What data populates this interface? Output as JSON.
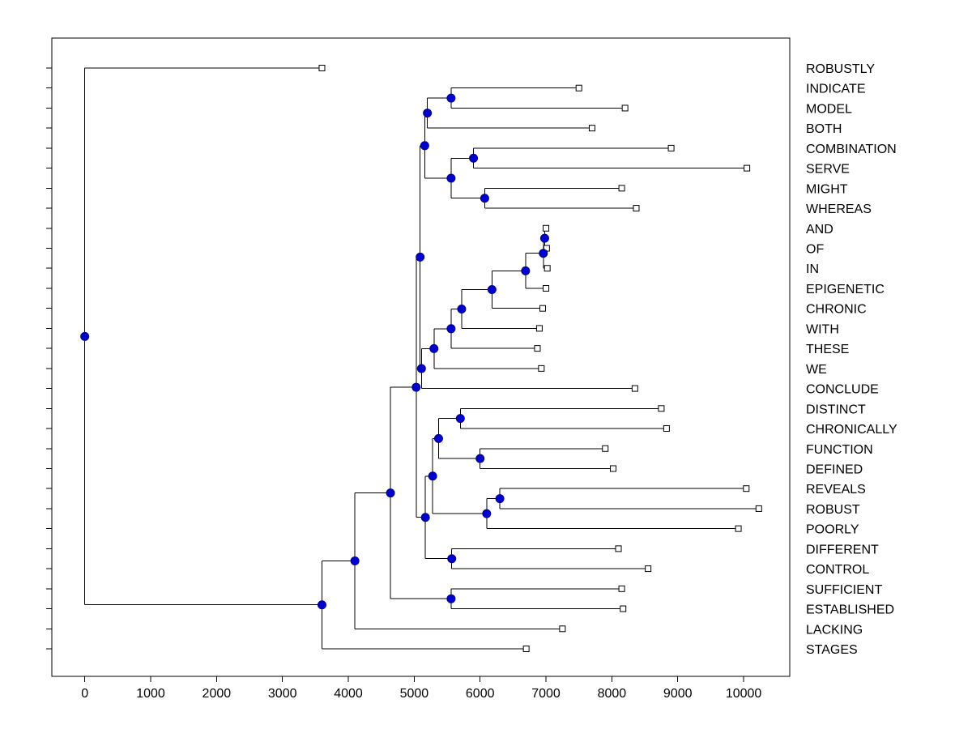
{
  "window": {
    "background": "#ffffff"
  },
  "chart_data": {
    "type": "dendrogram",
    "orientation": "root-left-leaves-right",
    "title": "",
    "xlabel": "",
    "ylabel": "",
    "grid": false,
    "xlim": [
      -500,
      10700
    ],
    "x_ticks": [
      0,
      1000,
      2000,
      3000,
      4000,
      5000,
      6000,
      7000,
      8000,
      9000,
      10000
    ],
    "colors": {
      "line": "#000000",
      "axis": "#000000",
      "text": "#000000",
      "node_fill": "#0000cd",
      "node_stroke": "#00008b",
      "leaf_fill": "#ffffff",
      "leaf_stroke": "#000000",
      "plot_background": "#ffffff"
    },
    "leaves": [
      {
        "label": "ROBUSTLY",
        "x": 3600
      },
      {
        "label": "INDICATE",
        "x": 7500
      },
      {
        "label": "MODEL",
        "x": 8200
      },
      {
        "label": "BOTH",
        "x": 7700
      },
      {
        "label": "COMBINATION",
        "x": 8900
      },
      {
        "label": "SERVE",
        "x": 10050
      },
      {
        "label": "MIGHT",
        "x": 8150
      },
      {
        "label": "WHEREAS",
        "x": 8370
      },
      {
        "label": "AND",
        "x": 7000
      },
      {
        "label": "OF",
        "x": 7010
      },
      {
        "label": "IN",
        "x": 7020
      },
      {
        "label": "EPIGENETIC",
        "x": 7000
      },
      {
        "label": "CHRONIC",
        "x": 6950
      },
      {
        "label": "WITH",
        "x": 6900
      },
      {
        "label": "THESE",
        "x": 6870
      },
      {
        "label": "WE",
        "x": 6930
      },
      {
        "label": "CONCLUDE",
        "x": 8350
      },
      {
        "label": "DISTINCT",
        "x": 8750
      },
      {
        "label": "CHRONICALLY",
        "x": 8830
      },
      {
        "label": "FUNCTION",
        "x": 7900
      },
      {
        "label": "DEFINED",
        "x": 8020
      },
      {
        "label": "REVEALS",
        "x": 10040
      },
      {
        "label": "ROBUST",
        "x": 10230
      },
      {
        "label": "POORLY",
        "x": 9920
      },
      {
        "label": "DIFFERENT",
        "x": 8100
      },
      {
        "label": "CONTROL",
        "x": 8550
      },
      {
        "label": "SUFFICIENT",
        "x": 8150
      },
      {
        "label": "ESTABLISHED",
        "x": 8170
      },
      {
        "label": "LACKING",
        "x": 7250
      },
      {
        "label": "STAGES",
        "x": 6700
      }
    ],
    "tree": {
      "x": 0,
      "c": [
        0,
        {
          "x": 3600,
          "c": [
            {
              "x": 4100,
              "c": [
                {
                  "x": 4640,
                  "c": [
                    {
                      "x": 5030,
                      "c": [
                        {
                          "x": 5090,
                          "c": [
                            {
                              "x": 5160,
                              "c": [
                                {
                                  "x": 5200,
                                  "c": [
                                    {
                                      "x": 5560,
                                      "c": [
                                        1,
                                        2
                                      ]
                                    },
                                    3
                                  ]
                                },
                                {
                                  "x": 5560,
                                  "c": [
                                    {
                                      "x": 5900,
                                      "c": [
                                        4,
                                        5
                                      ]
                                    },
                                    {
                                      "x": 6070,
                                      "c": [
                                        6,
                                        7
                                      ]
                                    }
                                  ]
                                }
                              ]
                            },
                            {
                              "x": 5110,
                              "c": [
                                {
                                  "x": 5300,
                                  "c": [
                                    {
                                      "x": 5560,
                                      "c": [
                                        {
                                          "x": 5720,
                                          "c": [
                                            {
                                              "x": 6180,
                                              "c": [
                                                {
                                                  "x": 6690,
                                                  "c": [
                                                    {
                                                      "x": 6960,
                                                      "c": [
                                                        {
                                                          "x": 6980,
                                                          "c": [
                                                            8,
                                                            9
                                                          ]
                                                        },
                                                        10
                                                      ]
                                                    },
                                                    11
                                                  ]
                                                },
                                                12
                                              ]
                                            },
                                            13
                                          ]
                                        },
                                        14
                                      ]
                                    },
                                    15
                                  ]
                                },
                                16
                              ]
                            }
                          ]
                        },
                        {
                          "x": 5170,
                          "c": [
                            {
                              "x": 5280,
                              "c": [
                                {
                                  "x": 5370,
                                  "c": [
                                    {
                                      "x": 5700,
                                      "c": [
                                        17,
                                        18
                                      ]
                                    },
                                    {
                                      "x": 6000,
                                      "c": [
                                        19,
                                        20
                                      ]
                                    }
                                  ]
                                },
                                {
                                  "x": 6100,
                                  "c": [
                                    {
                                      "x": 6300,
                                      "c": [
                                        21,
                                        22
                                      ]
                                    },
                                    23
                                  ]
                                }
                              ]
                            },
                            {
                              "x": 5570,
                              "c": [
                                24,
                                25
                              ]
                            }
                          ]
                        }
                      ]
                    },
                    {
                      "x": 5560,
                      "c": [
                        26,
                        27
                      ]
                    }
                  ]
                },
                28
              ]
            },
            29
          ]
        }
      ]
    }
  }
}
